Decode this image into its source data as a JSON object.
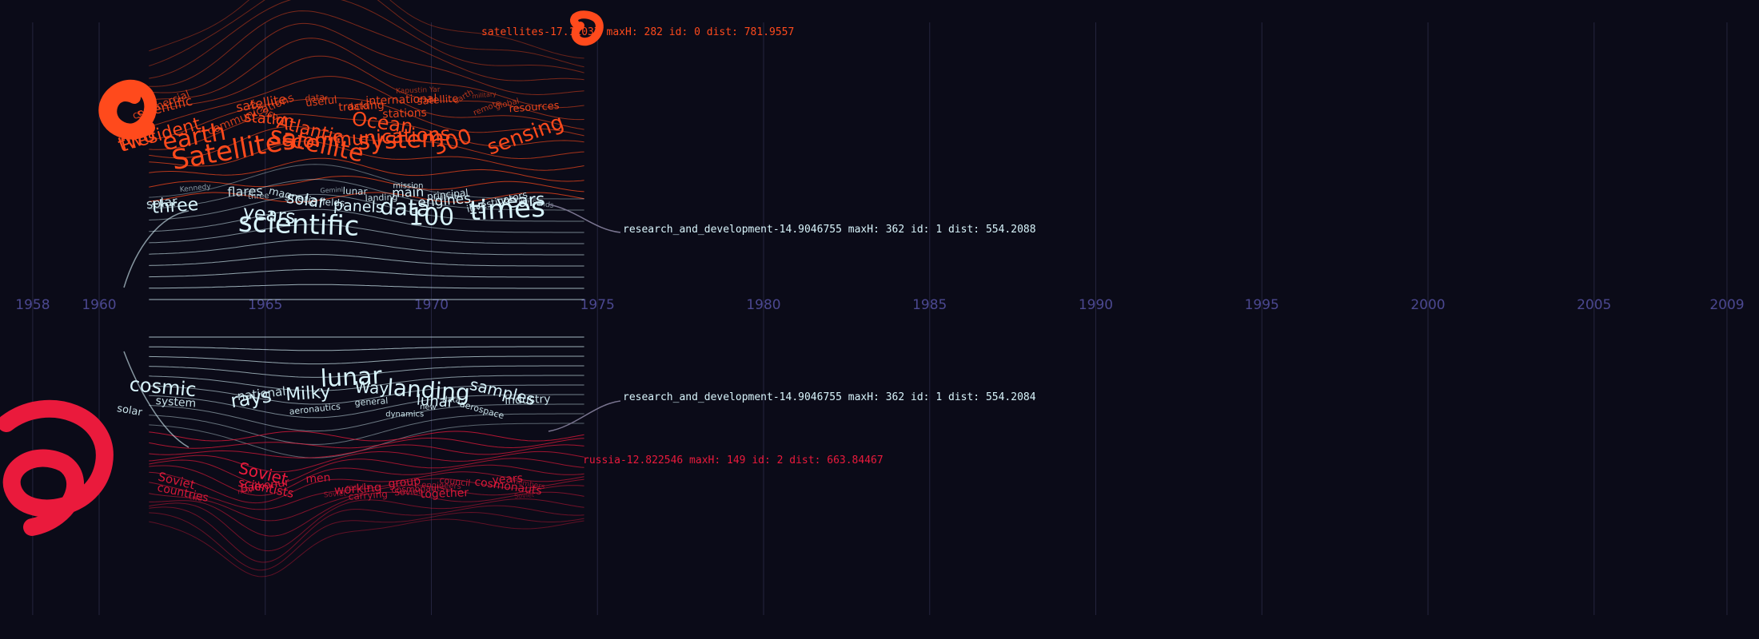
{
  "chart_data": {
    "type": "area",
    "subtype": "streamgraph word-cloud timeline",
    "x_ticks": [
      "1958",
      "1960",
      "1965",
      "1970",
      "1975",
      "1980",
      "1985",
      "1990",
      "1995",
      "2000",
      "2005",
      "2009"
    ],
    "x_tick_values": [
      1958,
      1960,
      1965,
      1970,
      1975,
      1980,
      1985,
      1990,
      1995,
      2000,
      2005,
      2009
    ],
    "xlim": [
      1957,
      2010
    ],
    "grid": true,
    "colors": {
      "background": "#0b0b18",
      "gridline": "#24243e",
      "tick_label": "#4b4890",
      "satellites": "#ff4a1c",
      "research": "#d8f4fb",
      "russia": "#ea1a3c",
      "connector": "#7a7590"
    },
    "series": [
      {
        "name": "satellites",
        "color": "#ff4a1c",
        "info_label": "satellites-17.11037 maxH: 282 id: 0 dist: 781.9557",
        "words": [
          {
            "t": "President",
            "yr": 1961.9,
            "s": 22,
            "r": -16,
            "o": 1
          },
          {
            "t": "Satellites",
            "yr": 1964.1,
            "s": 34,
            "r": -10,
            "o": 1
          },
          {
            "t": "two",
            "yr": 1961.2,
            "s": 26,
            "r": -20,
            "o": 1
          },
          {
            "t": "earth",
            "yr": 1962.9,
            "s": 30,
            "r": -10,
            "o": 1
          },
          {
            "t": "satellite",
            "yr": 1966.5,
            "s": 30,
            "r": 12,
            "o": 1
          },
          {
            "t": "communications",
            "yr": 1968.2,
            "s": 24,
            "r": -3,
            "o": 1
          },
          {
            "t": "system",
            "yr": 1969.1,
            "s": 30,
            "r": -2,
            "o": 1
          },
          {
            "t": "Atlantic",
            "yr": 1966.3,
            "s": 22,
            "r": 14,
            "o": 1
          },
          {
            "t": "Ocean",
            "yr": 1968.5,
            "s": 24,
            "r": 8,
            "o": 1
          },
          {
            "t": "sensing",
            "yr": 1972.9,
            "s": 26,
            "r": -20,
            "o": 1
          },
          {
            "t": "300",
            "yr": 1970.7,
            "s": 26,
            "r": -20,
            "o": 1
          },
          {
            "t": "useful",
            "yr": 1966.7,
            "s": 13,
            "r": -6,
            "o": 0.9
          },
          {
            "t": "data",
            "yr": 1967.8,
            "s": 12,
            "r": -4,
            "o": 0.9
          },
          {
            "t": "international",
            "yr": 1969.1,
            "s": 14,
            "r": -2,
            "o": 0.9
          },
          {
            "t": "commercial",
            "yr": 1961.9,
            "s": 13,
            "r": -22,
            "o": 0.8
          },
          {
            "t": "communications",
            "yr": 1964.6,
            "s": 14,
            "r": -22,
            "o": 0.8
          },
          {
            "t": "scientific",
            "yr": 1962.0,
            "s": 16,
            "r": -14,
            "o": 0.9
          },
          {
            "t": "station",
            "yr": 1965.1,
            "s": 18,
            "r": 5,
            "o": 1
          },
          {
            "t": "satellite",
            "yr": 1964.9,
            "s": 16,
            "r": -10,
            "o": 0.9
          },
          {
            "t": "tracking",
            "yr": 1967.9,
            "s": 14,
            "r": -3,
            "o": 0.9
          },
          {
            "t": "stations",
            "yr": 1969.2,
            "s": 14,
            "r": -2,
            "o": 0.9
          },
          {
            "t": "satellite",
            "yr": 1970.2,
            "s": 13,
            "r": -4,
            "o": 0.9
          },
          {
            "t": "resources",
            "yr": 1973.1,
            "s": 13,
            "r": -4,
            "o": 0.9
          },
          {
            "t": "remote",
            "yr": 1971.7,
            "s": 10,
            "r": -22,
            "o": 0.7
          },
          {
            "t": "earth",
            "yr": 1971.0,
            "s": 10,
            "r": -30,
            "o": 0.7
          },
          {
            "t": "global",
            "yr": 1972.3,
            "s": 10,
            "r": -14,
            "o": 0.7
          },
          {
            "t": "Kapustin Yar",
            "yr": 1969.6,
            "s": 9,
            "r": -2,
            "o": 0.6
          },
          {
            "t": "military",
            "yr": 1971.6,
            "s": 8,
            "r": -6,
            "o": 0.6
          },
          {
            "t": "Johnson",
            "yr": 1965.0,
            "s": 12,
            "r": 30,
            "o": 0.8
          },
          {
            "t": "data",
            "yr": 1966.5,
            "s": 11,
            "r": -5,
            "o": 0.8
          }
        ]
      },
      {
        "name": "research_and_development",
        "color": "#d8f4fb",
        "info_label": "research_and_development-14.9046755 maxH: 362 id: 1 dist: 554.2088",
        "words": [
          {
            "t": "scientific",
            "yr": 1966.0,
            "s": 34,
            "r": 2,
            "o": 1
          },
          {
            "t": "data",
            "yr": 1969.2,
            "s": 28,
            "r": 3,
            "o": 1
          },
          {
            "t": "100",
            "yr": 1970.0,
            "s": 30,
            "r": 0,
            "o": 1
          },
          {
            "t": "times",
            "yr": 1972.3,
            "s": 34,
            "r": -3,
            "o": 1
          },
          {
            "t": "three",
            "yr": 1962.3,
            "s": 22,
            "r": -4,
            "o": 1
          },
          {
            "t": "years",
            "yr": 1965.1,
            "s": 24,
            "r": 6,
            "o": 1
          },
          {
            "t": "solar",
            "yr": 1966.2,
            "s": 20,
            "r": 8,
            "o": 1
          },
          {
            "t": "panels",
            "yr": 1967.8,
            "s": 19,
            "r": 3,
            "o": 1
          },
          {
            "t": "main",
            "yr": 1969.3,
            "s": 16,
            "r": -2,
            "o": 1
          },
          {
            "t": "engines",
            "yr": 1970.4,
            "s": 17,
            "r": -5,
            "o": 1
          },
          {
            "t": "15",
            "yr": 1971.4,
            "s": 18,
            "r": -6,
            "o": 1
          },
          {
            "t": "years",
            "yr": 1972.7,
            "s": 22,
            "r": -4,
            "o": 1
          },
          {
            "t": "solar",
            "yr": 1961.9,
            "s": 16,
            "r": -6,
            "o": 0.9
          },
          {
            "t": "flares",
            "yr": 1964.4,
            "s": 16,
            "r": -2,
            "o": 0.9
          },
          {
            "t": "magnetic",
            "yr": 1965.8,
            "s": 13,
            "r": 14,
            "o": 0.9
          },
          {
            "t": "fields",
            "yr": 1967.0,
            "s": 12,
            "r": 4,
            "o": 0.9
          },
          {
            "t": "lunar",
            "yr": 1967.7,
            "s": 12,
            "r": 2,
            "o": 0.9
          },
          {
            "t": "landing",
            "yr": 1968.5,
            "s": 11,
            "r": -2,
            "o": 0.9
          },
          {
            "t": "mission",
            "yr": 1969.3,
            "s": 10,
            "r": 0,
            "o": 0.9
          },
          {
            "t": "principal",
            "yr": 1970.5,
            "s": 12,
            "r": -6,
            "o": 0.9
          },
          {
            "t": "investigators",
            "yr": 1972.0,
            "s": 12,
            "r": -14,
            "o": 0.9
          },
          {
            "t": "Kennedy",
            "yr": 1962.9,
            "s": 9,
            "r": -6,
            "o": 0.6
          },
          {
            "t": "three",
            "yr": 1964.8,
            "s": 10,
            "r": -2,
            "o": 0.7
          },
          {
            "t": "White Sands",
            "yr": 1973.0,
            "s": 9,
            "r": 8,
            "o": 0.6
          },
          {
            "t": "Gemini",
            "yr": 1967.0,
            "s": 8,
            "r": -3,
            "o": 0.6
          },
          {
            "t": "federal",
            "yr": 1970.4,
            "s": 8,
            "r": -6,
            "o": 0.6
          }
        ]
      },
      {
        "name": "research_and_development",
        "color": "#d8f4fb",
        "info_label": "research_and_development-14.9046755 maxH: 362 id: 1 dist: 554.2084",
        "words": [
          {
            "t": "lunar",
            "yr": 1967.6,
            "s": 30,
            "r": -3,
            "o": 1
          },
          {
            "t": "landing",
            "yr": 1969.9,
            "s": 28,
            "r": 4,
            "o": 1
          },
          {
            "t": "cosmic",
            "yr": 1961.9,
            "s": 24,
            "r": 5,
            "o": 1
          },
          {
            "t": "rays",
            "yr": 1964.6,
            "s": 24,
            "r": -8,
            "o": 1
          },
          {
            "t": "Milky",
            "yr": 1966.3,
            "s": 22,
            "r": -4,
            "o": 1
          },
          {
            "t": "Way",
            "yr": 1968.2,
            "s": 20,
            "r": 2,
            "o": 1
          },
          {
            "t": "lunar",
            "yr": 1970.1,
            "s": 18,
            "r": 4,
            "o": 1
          },
          {
            "t": "samples",
            "yr": 1972.1,
            "s": 20,
            "r": 14,
            "o": 1
          },
          {
            "t": "solar",
            "yr": 1960.9,
            "s": 13,
            "r": 10,
            "o": 0.9
          },
          {
            "t": "system",
            "yr": 1962.3,
            "s": 14,
            "r": 4,
            "o": 0.9
          },
          {
            "t": "national",
            "yr": 1964.9,
            "s": 15,
            "r": -6,
            "o": 0.9
          },
          {
            "t": "aeronautics",
            "yr": 1966.5,
            "s": 11,
            "r": -6,
            "o": 0.9
          },
          {
            "t": "general",
            "yr": 1968.2,
            "s": 11,
            "r": -4,
            "o": 0.9
          },
          {
            "t": "dynamics",
            "yr": 1969.2,
            "s": 10,
            "r": 0,
            "o": 0.9
          },
          {
            "t": "new",
            "yr": 1969.9,
            "s": 10,
            "r": 2,
            "o": 0.9
          },
          {
            "t": "data",
            "yr": 1970.6,
            "s": 10,
            "r": 2,
            "o": 0.9
          },
          {
            "t": "aerospace",
            "yr": 1971.5,
            "s": 11,
            "r": 16,
            "o": 0.9
          },
          {
            "t": "industry",
            "yr": 1972.9,
            "s": 14,
            "r": -2,
            "o": 0.9
          }
        ]
      },
      {
        "name": "russia",
        "color": "#ea1a3c",
        "info_label": "russia-12.822546 maxH: 149 id: 2 dist: 663.84467",
        "words": [
          {
            "t": "Soviet",
            "yr": 1964.9,
            "s": 20,
            "r": 14,
            "o": 1
          },
          {
            "t": "scientists",
            "yr": 1965.0,
            "s": 15,
            "r": 12,
            "o": 1
          },
          {
            "t": "Soviet",
            "yr": 1962.3,
            "s": 15,
            "r": 14,
            "o": 0.9
          },
          {
            "t": "countries",
            "yr": 1962.5,
            "s": 14,
            "r": 12,
            "o": 0.9
          },
          {
            "t": "Baikonur",
            "yr": 1965.0,
            "s": 14,
            "r": -8,
            "o": 0.9
          },
          {
            "t": "men",
            "yr": 1966.6,
            "s": 14,
            "r": -4,
            "o": 0.9
          },
          {
            "t": "working",
            "yr": 1967.8,
            "s": 15,
            "r": -4,
            "o": 0.9
          },
          {
            "t": "group",
            "yr": 1969.2,
            "s": 14,
            "r": -6,
            "o": 0.9
          },
          {
            "t": "together",
            "yr": 1970.4,
            "s": 14,
            "r": -2,
            "o": 0.9
          },
          {
            "t": "cosmonauts",
            "yr": 1972.3,
            "s": 14,
            "r": 8,
            "o": 0.9
          },
          {
            "t": "years",
            "yr": 1972.3,
            "s": 14,
            "r": -4,
            "o": 0.9
          },
          {
            "t": "Soviet",
            "yr": 1969.3,
            "s": 11,
            "r": -2,
            "o": 0.8
          },
          {
            "t": "engineers",
            "yr": 1970.3,
            "s": 10,
            "r": 2,
            "o": 0.7
          },
          {
            "t": "carrying",
            "yr": 1968.1,
            "s": 12,
            "r": -4,
            "o": 0.8
          },
          {
            "t": "cosmonauts",
            "yr": 1969.6,
            "s": 11,
            "r": -2,
            "o": 0.8
          },
          {
            "t": "council",
            "yr": 1970.7,
            "s": 11,
            "r": 6,
            "o": 0.8
          },
          {
            "t": "Soviet",
            "yr": 1967.1,
            "s": 9,
            "r": -4,
            "o": 0.6
          },
          {
            "t": "results",
            "yr": 1967.8,
            "s": 9,
            "r": -2,
            "o": 0.6
          },
          {
            "t": "two",
            "yr": 1962.9,
            "s": 9,
            "r": 10,
            "o": 0.6
          },
          {
            "t": "new",
            "yr": 1964.4,
            "s": 9,
            "r": -6,
            "o": 0.6
          },
          {
            "t": "members",
            "yr": 1972.9,
            "s": 9,
            "r": 10,
            "o": 0.6
          },
          {
            "t": "Soviet",
            "yr": 1972.8,
            "s": 8,
            "r": -4,
            "o": 0.5
          }
        ]
      }
    ]
  }
}
